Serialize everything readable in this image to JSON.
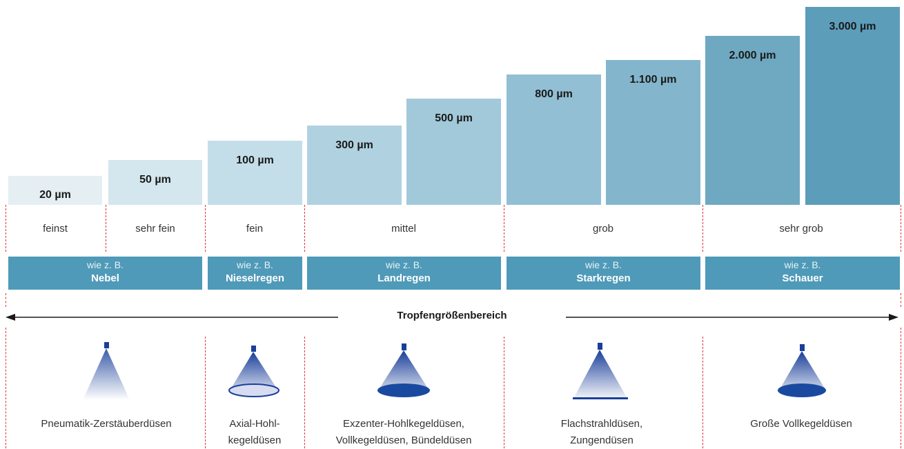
{
  "droplet_sizes": [
    {
      "label": "20 µm",
      "color": "#e4eef3"
    },
    {
      "label": "50 µm",
      "color": "#d4e6ee"
    },
    {
      "label": "100 µm",
      "color": "#c4dee9"
    },
    {
      "label": "300 µm",
      "color": "#b0d2e0"
    },
    {
      "label": "500 µm",
      "color": "#a2c9da"
    },
    {
      "label": "800 µm",
      "color": "#92bfd3"
    },
    {
      "label": "1.100 µm",
      "color": "#83b6cc"
    },
    {
      "label": "2.000 µm",
      "color": "#6fa8c1"
    },
    {
      "label": "3.000 µm",
      "color": "#5c9dba"
    }
  ],
  "categories": [
    "feinst",
    "sehr fein",
    "fein",
    "mittel",
    "grob",
    "sehr grob"
  ],
  "examples": [
    {
      "prefix": "wie z. B.",
      "name": "Nebel"
    },
    {
      "prefix": "wie z. B.",
      "name": "Nieselregen"
    },
    {
      "prefix": "wie z. B.",
      "name": "Landregen"
    },
    {
      "prefix": "wie z. B.",
      "name": "Starkregen"
    },
    {
      "prefix": "wie z. B.",
      "name": "Schauer"
    }
  ],
  "range_label": "Tropfengrößenbereich",
  "nozzles": [
    {
      "type": "pneumatic",
      "label": [
        "Pneumatik-Zerstäuberdüsen"
      ]
    },
    {
      "type": "hollow-cone",
      "label": [
        "Axial-Hohl-",
        "kegeldüsen"
      ]
    },
    {
      "type": "full-cone",
      "label": [
        "Exzenter-Hohlkegeldüsen,",
        "Vollkegeldüsen, Bündeldüsen"
      ]
    },
    {
      "type": "flat",
      "label": [
        "Flachstrahldüsen,",
        "Zungendüsen"
      ]
    },
    {
      "type": "large-full-cone",
      "label": [
        "Große Vollkegeldüsen"
      ]
    }
  ],
  "colors": {
    "accent": "#4f9ab8",
    "nozzle_blue": "#1a3f99",
    "divider_red": "#e0303a"
  }
}
